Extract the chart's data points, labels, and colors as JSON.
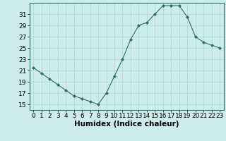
{
  "x": [
    0,
    1,
    2,
    3,
    4,
    5,
    6,
    7,
    8,
    9,
    10,
    11,
    12,
    13,
    14,
    15,
    16,
    17,
    18,
    19,
    20,
    21,
    22,
    23
  ],
  "y": [
    21.5,
    20.5,
    19.5,
    18.5,
    17.5,
    16.5,
    16.0,
    15.5,
    15.0,
    17.0,
    20.0,
    23.0,
    26.5,
    29.0,
    29.5,
    31.0,
    32.5,
    32.5,
    32.5,
    30.5,
    27.0,
    26.0,
    25.5,
    25.0
  ],
  "xlabel": "Humidex (Indice chaleur)",
  "ylim": [
    14,
    33
  ],
  "yticks": [
    15,
    17,
    19,
    21,
    23,
    25,
    27,
    29,
    31
  ],
  "xticks": [
    0,
    1,
    2,
    3,
    4,
    5,
    6,
    7,
    8,
    9,
    10,
    11,
    12,
    13,
    14,
    15,
    16,
    17,
    18,
    19,
    20,
    21,
    22,
    23
  ],
  "line_color": "#2d6e5e",
  "marker": "D",
  "marker_size": 2.0,
  "bg_color": "#ceecea",
  "grid_color": "#aed4d0",
  "axis_color": "#2d6e5e",
  "xlabel_fontsize": 7.5,
  "tick_fontsize": 6.5
}
